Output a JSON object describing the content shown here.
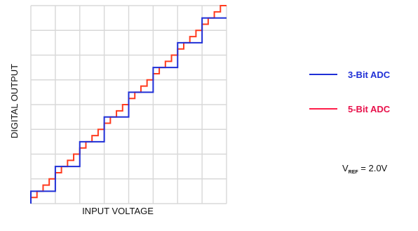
{
  "chart_data": {
    "type": "line",
    "xlabel": "INPUT VOLTAGE",
    "ylabel": "DIGITAL OUTPUT",
    "grid": true,
    "legend_placement": "right",
    "xlim": [
      0,
      2.0
    ],
    "ylim": [
      0,
      8
    ],
    "series": [
      {
        "name": "3-Bit ADC",
        "color": "#1f2fd6",
        "levels": 8,
        "step_width": 0.25,
        "x": [
          0.0,
          0.25,
          0.5,
          0.75,
          1.0,
          1.25,
          1.5,
          1.75
        ],
        "y": [
          0,
          1,
          2,
          3,
          4,
          5,
          6,
          7
        ]
      },
      {
        "name": "5-Bit ADC",
        "color": "#ff3b1f",
        "levels": 32,
        "step_width": 0.0625,
        "x": [
          0.0,
          0.0625,
          0.125,
          0.1875,
          0.25,
          0.3125,
          0.375,
          0.4375,
          0.5,
          0.5625,
          0.625,
          0.6875,
          0.75,
          0.8125,
          0.875,
          0.9375,
          1.0,
          1.0625,
          1.125,
          1.1875,
          1.25,
          1.3125,
          1.375,
          1.4375,
          1.5,
          1.5625,
          1.625,
          1.6875,
          1.75,
          1.8125,
          1.875,
          1.9375
        ],
        "y": [
          0,
          0.25,
          0.5,
          0.75,
          1,
          1.25,
          1.5,
          1.75,
          2,
          2.25,
          2.5,
          2.75,
          3,
          3.25,
          3.5,
          3.75,
          4,
          4.25,
          4.5,
          4.75,
          5,
          5.25,
          5.5,
          5.75,
          6,
          6.25,
          6.5,
          6.75,
          7,
          7.25,
          7.5,
          7.75
        ]
      }
    ],
    "annotation": {
      "prefix": "V",
      "subscript": "REF",
      "suffix": " = 2.0V"
    }
  }
}
